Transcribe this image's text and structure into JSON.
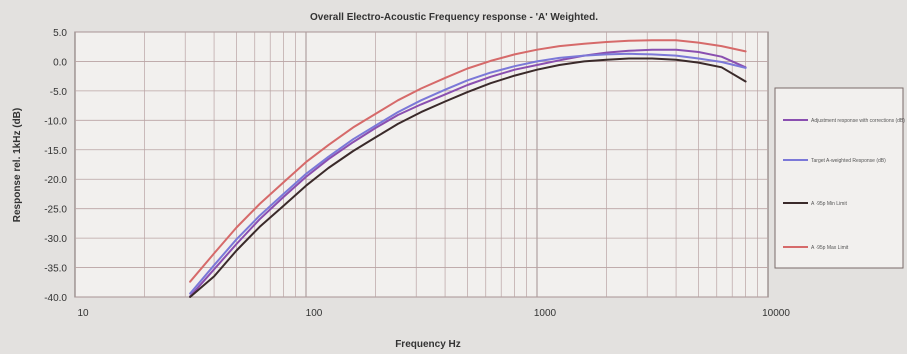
{
  "chart_data": {
    "type": "line",
    "title": "Overall Electro-Acoustic Frequency response - 'A' Weighted.",
    "xlabel": "Frequency Hz",
    "ylabel": "Response rel. 1kHz (dB)",
    "x_scale": "log",
    "xlim": [
      10,
      10000
    ],
    "ylim": [
      -40,
      5
    ],
    "x_ticks": [
      10,
      100,
      1000,
      10000
    ],
    "x_tick_labels": [
      "10",
      "100",
      "1000",
      "10000"
    ],
    "y_ticks": [
      5,
      0,
      -5,
      -10,
      -15,
      -20,
      -25,
      -30,
      -35,
      -40
    ],
    "y_tick_labels": [
      "5.0",
      "0.0",
      "-5.0",
      "-10.0",
      "-15.0",
      "-20.0",
      "-25.0",
      "-30.0",
      "-35.0",
      "-40.0"
    ],
    "grid": true,
    "legend_position": "right",
    "x": [
      31.5,
      40,
      50,
      63,
      80,
      100,
      125,
      160,
      200,
      250,
      315,
      400,
      500,
      630,
      800,
      1000,
      1250,
      1600,
      2000,
      2500,
      3150,
      4000,
      5000,
      6300,
      8000
    ],
    "series": [
      {
        "name": "Adjustment response with corrections (dB)",
        "color": "#8a4fb0",
        "values": [
          -39.9,
          -35.3,
          -31.0,
          -26.8,
          -23.0,
          -19.6,
          -16.6,
          -13.7,
          -11.3,
          -9.1,
          -7.3,
          -5.6,
          -4.0,
          -2.6,
          -1.4,
          -0.6,
          0.2,
          1.0,
          1.5,
          1.8,
          2.0,
          2.0,
          1.6,
          0.8,
          -1.0
        ]
      },
      {
        "name": "Target A-weighted Response (dB)",
        "color": "#7b78d8",
        "values": [
          -39.4,
          -34.6,
          -30.2,
          -26.2,
          -22.5,
          -19.1,
          -16.2,
          -13.2,
          -10.9,
          -8.6,
          -6.6,
          -4.8,
          -3.2,
          -1.9,
          -0.8,
          0.0,
          0.6,
          1.0,
          1.2,
          1.3,
          1.2,
          1.0,
          0.5,
          -0.1,
          -1.1
        ]
      },
      {
        "name": "A ·95p Min Limit",
        "color": "#3a2a2a",
        "values": [
          -40.0,
          -36.5,
          -32.1,
          -28.1,
          -24.5,
          -21.1,
          -18.1,
          -15.2,
          -12.9,
          -10.6,
          -8.6,
          -6.8,
          -5.2,
          -3.7,
          -2.4,
          -1.4,
          -0.6,
          0.0,
          0.3,
          0.5,
          0.5,
          0.3,
          -0.2,
          -1.0,
          -3.4
        ]
      },
      {
        "name": "A ·95p Max Limit",
        "color": "#d66a6a",
        "values": [
          -37.4,
          -32.6,
          -28.2,
          -24.2,
          -20.5,
          -17.1,
          -14.2,
          -11.2,
          -8.9,
          -6.6,
          -4.6,
          -2.8,
          -1.2,
          0.1,
          1.2,
          2.0,
          2.6,
          3.0,
          3.3,
          3.5,
          3.6,
          3.6,
          3.2,
          2.6,
          1.7
        ]
      }
    ]
  }
}
